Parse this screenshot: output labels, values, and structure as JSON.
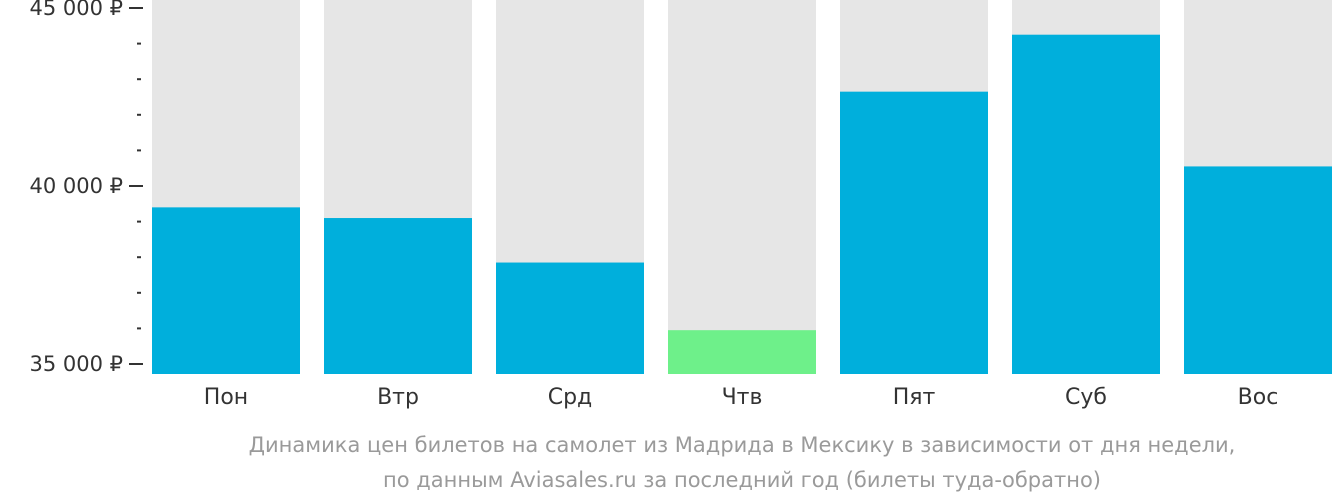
{
  "chart_data": {
    "type": "bar",
    "categories": [
      "Пон",
      "Втр",
      "Срд",
      "Чтв",
      "Пят",
      "Суб",
      "Вос"
    ],
    "values": [
      39400,
      39100,
      37850,
      35950,
      42650,
      44250,
      40550
    ],
    "highlight_index": 3,
    "ylim": [
      35000,
      45000
    ],
    "yticks": [
      {
        "value": 35000,
        "label": "35 000 ₽"
      },
      {
        "value": 40000,
        "label": "40 000 ₽"
      },
      {
        "value": 45000,
        "label": "45 000 ₽"
      }
    ],
    "minor_tick_step": 1000,
    "grid": false,
    "colors": {
      "bar": "#00afdc",
      "highlight": "#6ef08a",
      "background_bar": "#e6e6e6",
      "axis": "#333333",
      "text": "#333333",
      "caption": "#9a9a9a"
    }
  },
  "caption": {
    "line1": "Динамика цен билетов на самолет из Мадрида в Мексику в зависимости от дня недели,",
    "line2": "по данным Aviasales.ru за последний год (билеты туда-обратно)"
  }
}
